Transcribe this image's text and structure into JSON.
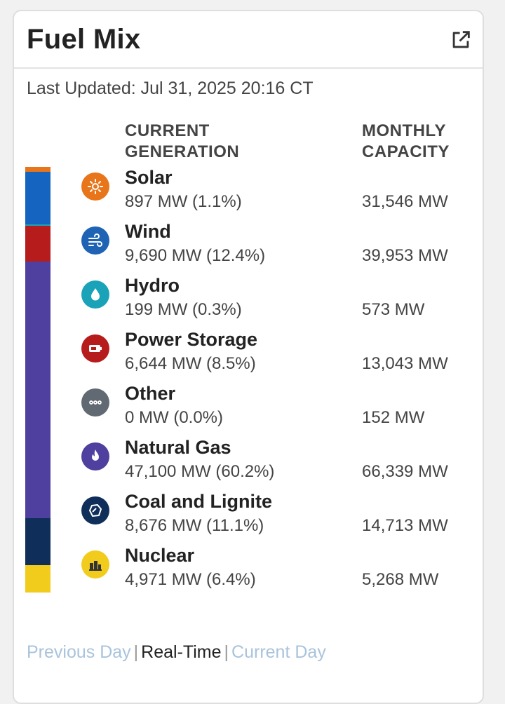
{
  "header": {
    "title": "Fuel Mix",
    "popout_icon": "external-link-icon"
  },
  "last_updated": "Last Updated: Jul 31, 2025 20:16 CT",
  "columns": {
    "generation_line1": "CURRENT",
    "generation_line2": "GENERATION",
    "capacity_line1": "MONTHLY",
    "capacity_line2": "CAPACITY"
  },
  "fuels": [
    {
      "name": "Solar",
      "generation": "897 MW (1.1%)",
      "capacity": "31,546 MW",
      "share": 1.1,
      "icon": "sun-icon",
      "icon_color": "#e8751a",
      "bar_color": "#e8751a"
    },
    {
      "name": "Wind",
      "generation": "9,690 MW (12.4%)",
      "capacity": "39,953 MW",
      "share": 12.4,
      "icon": "wind-icon",
      "icon_color": "#1f64b4",
      "bar_color": "#1565c0"
    },
    {
      "name": "Hydro",
      "generation": "199 MW (0.3%)",
      "capacity": "573 MW",
      "share": 0.3,
      "icon": "water-drop-icon",
      "icon_color": "#1aa3b8",
      "bar_color": "#1aa3b8"
    },
    {
      "name": "Power Storage",
      "generation": "6,644 MW (8.5%)",
      "capacity": "13,043 MW",
      "share": 8.5,
      "icon": "battery-icon",
      "icon_color": "#b71c1c",
      "bar_color": "#b71c1c"
    },
    {
      "name": "Other",
      "generation": "0 MW (0.0%)",
      "capacity": "152 MW",
      "share": 0.0,
      "icon": "more-dots-icon",
      "icon_color": "#616a72",
      "bar_color": "#616a72"
    },
    {
      "name": "Natural Gas",
      "generation": "47,100 MW (60.2%)",
      "capacity": "66,339 MW",
      "share": 60.2,
      "icon": "flame-icon",
      "icon_color": "#4f3f9e",
      "bar_color": "#4f3f9e"
    },
    {
      "name": "Coal and Lignite",
      "generation": "8,676 MW (11.1%)",
      "capacity": "14,713 MW",
      "share": 11.1,
      "icon": "coal-icon",
      "icon_color": "#0f2f5a",
      "bar_color": "#0f2f5a"
    },
    {
      "name": "Nuclear",
      "generation": "4,971 MW (6.4%)",
      "capacity": "5,268 MW",
      "share": 6.4,
      "icon": "nuclear-plant-icon",
      "icon_color": "#f2cc1d",
      "bar_color": "#f2cc1d"
    }
  ],
  "footer": {
    "previous_day": "Previous Day",
    "real_time": "Real-Time",
    "current_day": "Current Day",
    "separator": "|"
  }
}
